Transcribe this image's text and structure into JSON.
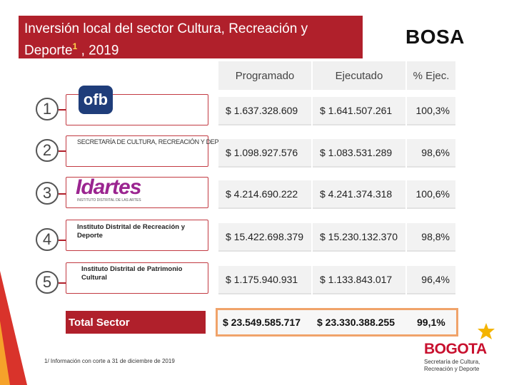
{
  "header": {
    "title": "Inversión local del sector Cultura, Recreación y Deporte",
    "footnote_marker": "1",
    "year": " , 2019",
    "location": "BOSA"
  },
  "table": {
    "columns": [
      "Programado",
      "Ejecutado",
      "% Ejec."
    ],
    "rows": [
      {
        "num": "1",
        "logo_text": "ofb",
        "programado": "$ 1.637.328.609",
        "ejecutado": "$ 1.641.507.261",
        "pct": "100,3%"
      },
      {
        "num": "2",
        "logo_text": "SECRETARÍA DE CULTURA, RECREACIÓN Y DEPORTE",
        "programado": "$ 1.098.927.576",
        "ejecutado": "$ 1.083.531.289",
        "pct": "98,6%"
      },
      {
        "num": "3",
        "logo_text": "Idartes",
        "logo_subtext": "INSTITUTO DISTRITAL DE LAS ARTES",
        "programado": "$ 4.214.690.222",
        "ejecutado": "$ 4.241.374.318",
        "pct": "100,6%"
      },
      {
        "num": "4",
        "logo_text": "Instituto Distrital de Recreación y Deporte",
        "programado": "$ 15.422.698.379",
        "ejecutado": "$ 15.230.132.370",
        "pct": "98,8%"
      },
      {
        "num": "5",
        "logo_text": "Instituto Distrital de Patrimonio Cultural",
        "programado": "$ 1.175.940.931",
        "ejecutado": "$ 1.133.843.017",
        "pct": "96,4%"
      }
    ],
    "total": {
      "label": "Total Sector",
      "programado": "$ 23.549.585.717",
      "ejecutado": "$ 23.330.388.255",
      "pct": "99,1%"
    }
  },
  "footnote": "1/ Información con corte a 31 de diciembre de 2019",
  "brand": {
    "name": "BOGOTA",
    "subtitle": "Secretaría de Cultura, Recreación y Deporte"
  },
  "colors": {
    "accent": "#b0202b",
    "total_border": "#f0a36a",
    "cell_bg": "#f2f2f2"
  }
}
